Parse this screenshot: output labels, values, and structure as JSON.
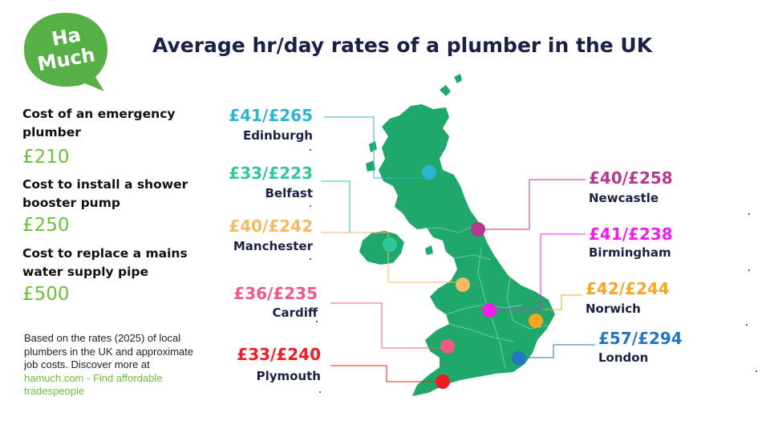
{
  "header": {
    "title": "Average hr/day rates of a plumber in the UK"
  },
  "logo": {
    "text_line1": "Ha",
    "text_line2": "Much",
    "color": "#56b046"
  },
  "costs": [
    {
      "label": "Cost of an emergency plumber",
      "value": "£210"
    },
    {
      "label": "Cost to install a shower booster pump",
      "value": "£250"
    },
    {
      "label": "Cost to replace a mains water supply pipe",
      "value": "£500"
    }
  ],
  "note": {
    "text": "Based on the rates (2025) of local plumbers in the UK and approximate job costs. Discover more at",
    "link": "hamuch.com - Find affordable tradespeople"
  },
  "colors": {
    "map": "#20a86b",
    "title": "#1b2145",
    "accent": "#6abf3b"
  },
  "cities": [
    {
      "name": "Edinburgh",
      "rate": "£41/£265",
      "color": "#2ab5d0"
    },
    {
      "name": "Belfast",
      "rate": "£33/£223",
      "color": "#2ec99a"
    },
    {
      "name": "Manchester",
      "rate": "£40/£242",
      "color": "#f5b965"
    },
    {
      "name": "Cardiff",
      "rate": "£36/£235",
      "color": "#ee5a86"
    },
    {
      "name": "Plymouth",
      "rate": "£33/£240",
      "color": "#ee1c24"
    },
    {
      "name": "Newcastle",
      "rate": "£40/£258",
      "color": "#b5398f"
    },
    {
      "name": "Birmingham",
      "rate": "£41/£238",
      "color": "#ef1ee9"
    },
    {
      "name": "Norwich",
      "rate": "£42/£244",
      "color": "#f5a623"
    },
    {
      "name": "London",
      "rate": "£57/£294",
      "color": "#2576c0"
    }
  ]
}
